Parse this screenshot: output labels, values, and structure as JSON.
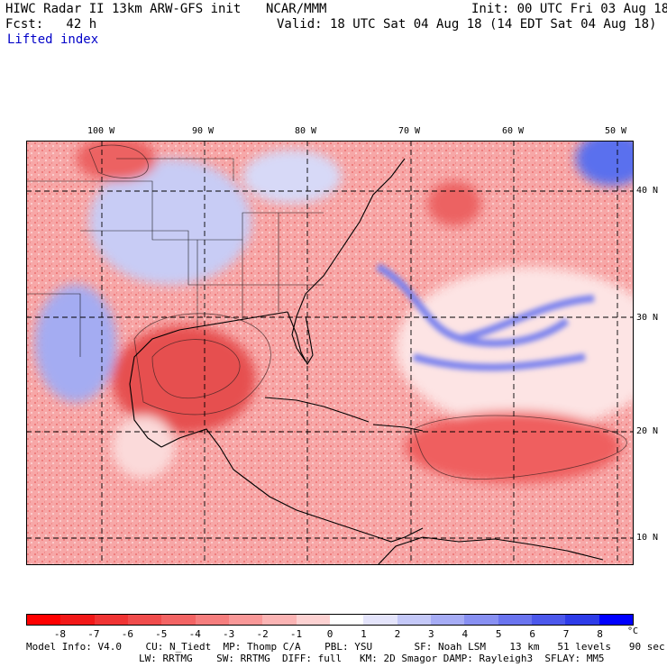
{
  "header": {
    "model_title": "HIWC Radar II 13km ARW-GFS init",
    "org": "NCAR/MMM",
    "init": "Init: 00 UTC Fri 03 Aug 18",
    "fcst": "Fcst:   42 h",
    "valid": "Valid: 18 UTC Sat 04 Aug 18 (14 EDT Sat 04 Aug 18)",
    "field": "Lifted index"
  },
  "map": {
    "lon_labels": [
      "100 W",
      "90 W",
      "80 W",
      "70 W",
      "60 W",
      "50 W"
    ],
    "lat_labels": [
      "40 N",
      "30 N",
      "20 N",
      "10 N"
    ],
    "colors": {
      "land_outline": "#000000",
      "grid": "#000000",
      "strong_unstable": "#e83a3a",
      "unstable": "#f47a7a",
      "neutral": "#fde0e0",
      "stable": "#c8ccf5",
      "strong_stable": "#3c5aee"
    }
  },
  "colorbar": {
    "labels": [
      "-8",
      "-7",
      "-6",
      "-5",
      "-4",
      "-3",
      "-2",
      "-1",
      "0",
      "1",
      "2",
      "3",
      "4",
      "5",
      "6",
      "7",
      "8"
    ],
    "unit": "°C",
    "colors": [
      "#ff0000",
      "#f21818",
      "#f03434",
      "#f04c4c",
      "#f36464",
      "#f67e7e",
      "#f99898",
      "#fbb4b4",
      "#fdd2d2",
      "#ffffff",
      "#e4e4fb",
      "#c4c8f8",
      "#a6acf5",
      "#8890f2",
      "#6a74ef",
      "#4c58ec",
      "#2e3ce9",
      "#0000ff"
    ]
  },
  "footer": {
    "line1": "Model Info: V4.0    CU: N_Tiedt  MP: Thomp C/A    PBL: YSU       SF: Noah LSM    13 km   51 levels   90 sec",
    "line2": "LW: RRTMG    SW: RRTMG  DIFF: full   KM: 2D Smagor DAMP: Rayleigh3  SFLAY: MM5"
  }
}
